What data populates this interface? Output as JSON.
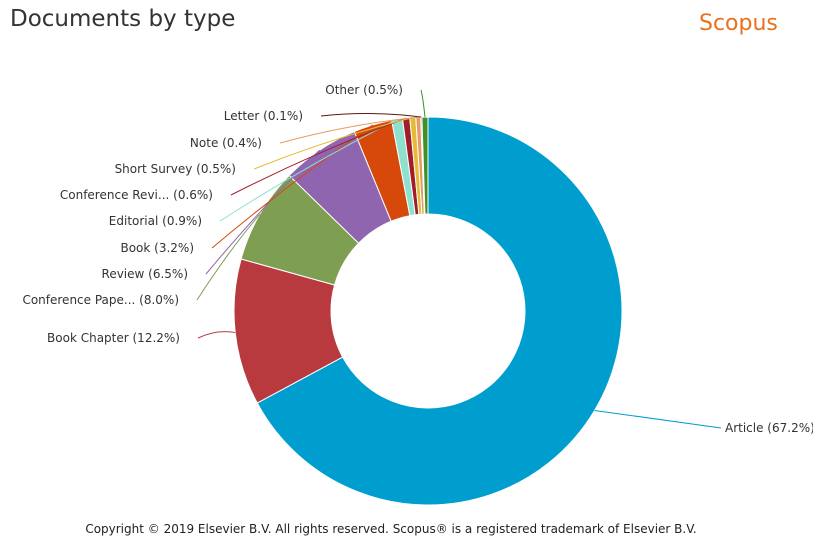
{
  "header": {
    "title": "Documents by type",
    "brand": "Scopus"
  },
  "footer": {
    "copyright": "Copyright © 2019 Elsevier B.V. All rights reserved. Scopus® is a registered trademark of Elsevier B.V."
  },
  "chart_data": {
    "type": "pie",
    "subtype": "donut",
    "title": "Documents by type",
    "legend": "none",
    "slices": [
      {
        "label": "Article (67.2%)",
        "value": 67.2,
        "color": "#009ecf"
      },
      {
        "label": "Book Chapter (12.2%)",
        "value": 12.2,
        "color": "#b83a3f"
      },
      {
        "label": "Conference Pape... (8.0%)",
        "value": 8.0,
        "color": "#7e9e52"
      },
      {
        "label": "Review (6.5%)",
        "value": 6.5,
        "color": "#9065b0"
      },
      {
        "label": "Book (3.2%)",
        "value": 3.2,
        "color": "#d6490a"
      },
      {
        "label": "Editorial (0.9%)",
        "value": 0.9,
        "color": "#8ee0cf"
      },
      {
        "label": "Conference Revi... (0.6%)",
        "value": 0.6,
        "color": "#a11d2a"
      },
      {
        "label": "Short Survey (0.5%)",
        "value": 0.5,
        "color": "#e6bb37"
      },
      {
        "label": "Note (0.4%)",
        "value": 0.4,
        "color": "#e79a63"
      },
      {
        "label": "Letter (0.1%)",
        "value": 0.1,
        "color": "#5b1a0f"
      },
      {
        "label": "Other (0.5%)",
        "value": 0.5,
        "color": "#3f8f2a"
      }
    ]
  }
}
